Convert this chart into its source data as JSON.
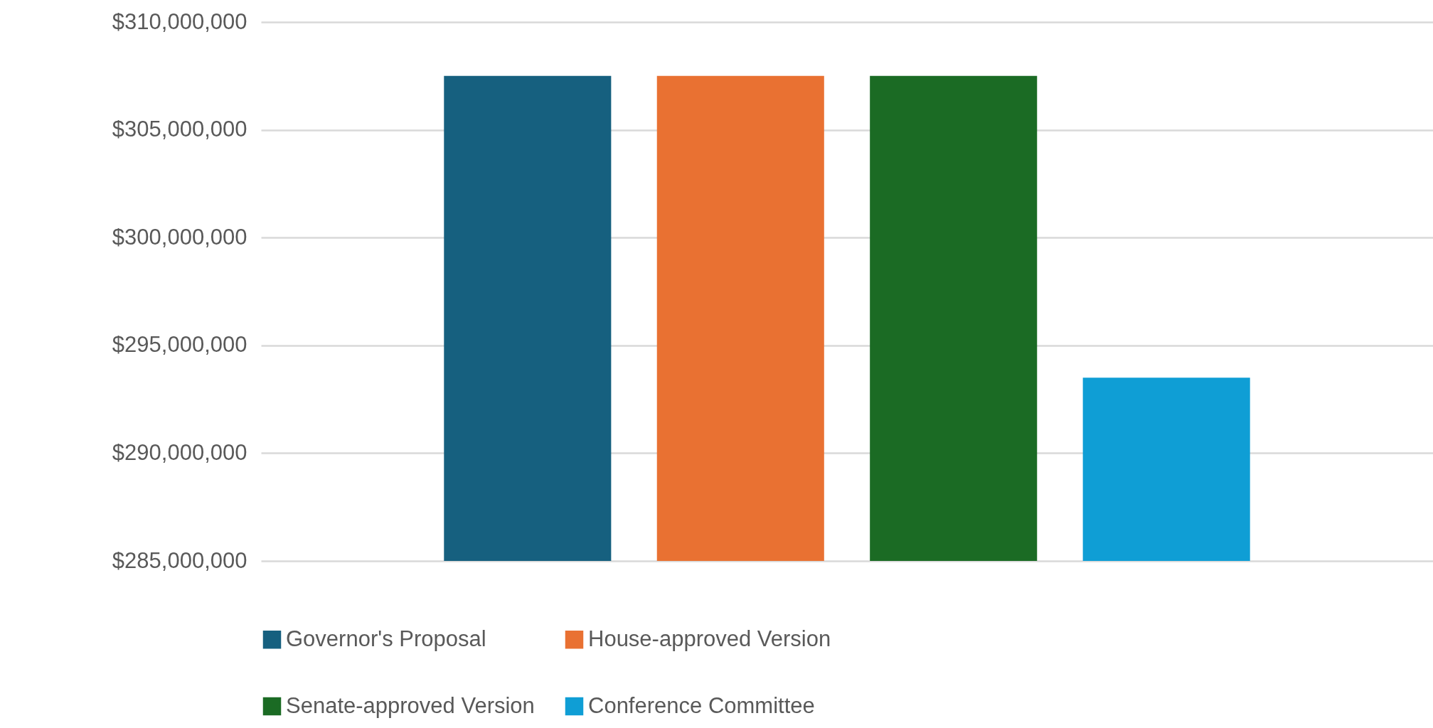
{
  "chart_data": {
    "type": "bar",
    "categories": [
      null
    ],
    "series": [
      {
        "name": "Governor's Proposal",
        "color": "#16607f",
        "values": [
          307500000
        ]
      },
      {
        "name": "House-approved Version",
        "color": "#e97132",
        "values": [
          307500000
        ]
      },
      {
        "name": "Senate-approved Version",
        "color": "#1b6b24",
        "values": [
          307500000
        ]
      },
      {
        "name": "Conference Committee",
        "color": "#0f9ed5",
        "values": [
          293500000
        ]
      }
    ],
    "ylim": [
      285000000,
      310000000
    ],
    "yticks": [
      {
        "value": 285000000,
        "label": "$285,000,000"
      },
      {
        "value": 290000000,
        "label": "$290,000,000"
      },
      {
        "value": 295000000,
        "label": "$295,000,000"
      },
      {
        "value": 300000000,
        "label": "$300,000,000"
      },
      {
        "value": 305000000,
        "label": "$305,000,000"
      },
      {
        "value": 310000000,
        "label": "$310,000,000"
      }
    ],
    "grid": "y",
    "legend": "bottom",
    "tick_labels": "y"
  }
}
